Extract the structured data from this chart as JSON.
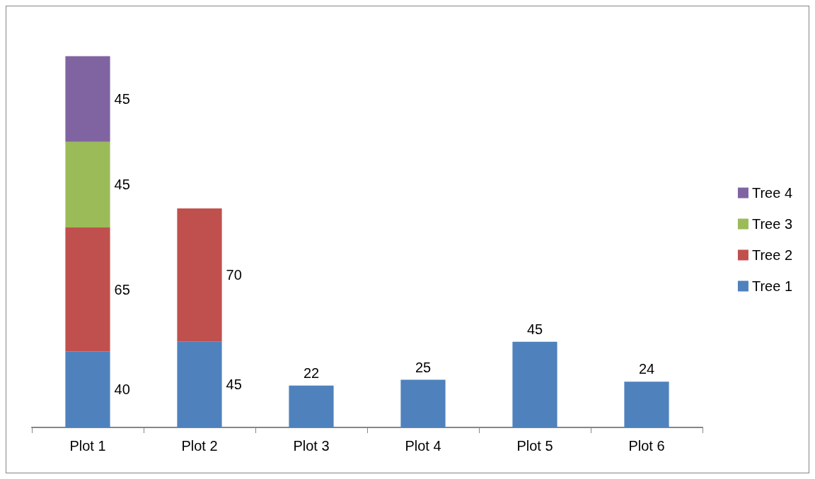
{
  "chart_data": {
    "type": "bar",
    "stacked": true,
    "data_labels": true,
    "legend": "right",
    "categories": [
      "Plot 1",
      "Plot 2",
      "Plot 3",
      "Plot 4",
      "Plot 5",
      "Plot 6"
    ],
    "series": [
      {
        "name": "Tree 1",
        "color": "#4f81bd",
        "values": [
          40,
          45,
          22,
          25,
          45,
          24
        ]
      },
      {
        "name": "Tree 2",
        "color": "#c0504d",
        "values": [
          65,
          70,
          null,
          null,
          null,
          null
        ]
      },
      {
        "name": "Tree 3",
        "color": "#9bbb59",
        "values": [
          45,
          null,
          null,
          null,
          null,
          null
        ]
      },
      {
        "name": "Tree 4",
        "color": "#8064a2",
        "values": [
          45,
          null,
          null,
          null,
          null,
          null
        ]
      }
    ]
  }
}
